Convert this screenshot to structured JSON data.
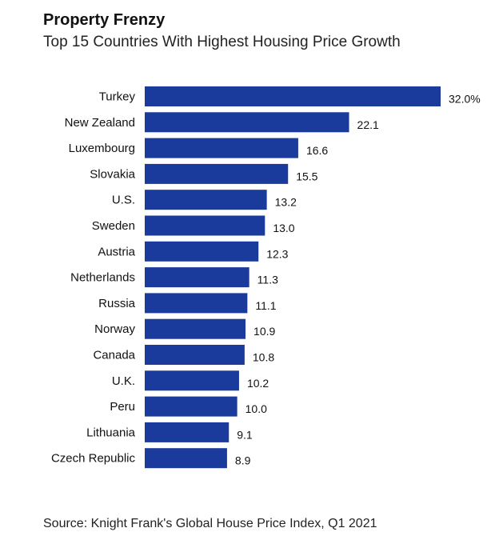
{
  "chart_data": {
    "type": "bar",
    "orientation": "horizontal",
    "title": "Property Frenzy",
    "subtitle": "Top 15 Countries With Highest Housing Price Growth",
    "categories": [
      "Turkey",
      "New Zealand",
      "Luxembourg",
      "Slovakia",
      "U.S.",
      "Sweden",
      "Austria",
      "Netherlands",
      "Russia",
      "Norway",
      "Canada",
      "U.K.",
      "Peru",
      "Lithuania",
      "Czech Republic"
    ],
    "values": [
      32.0,
      22.1,
      16.6,
      15.5,
      13.2,
      13.0,
      12.3,
      11.3,
      11.1,
      10.9,
      10.8,
      10.2,
      10.0,
      9.1,
      8.9
    ],
    "value_labels": [
      "32.0%",
      "22.1",
      "16.6",
      "15.5",
      "13.2",
      "13.0",
      "12.3",
      "11.3",
      "11.1",
      "10.9",
      "10.8",
      "10.2",
      "10.0",
      "9.1",
      "8.9"
    ],
    "xlim": [
      0,
      32.0
    ],
    "grid": false,
    "bar_color": "#1a3a9c",
    "source": "Source: Knight Frank's Global House Price Index, Q1 2021"
  }
}
